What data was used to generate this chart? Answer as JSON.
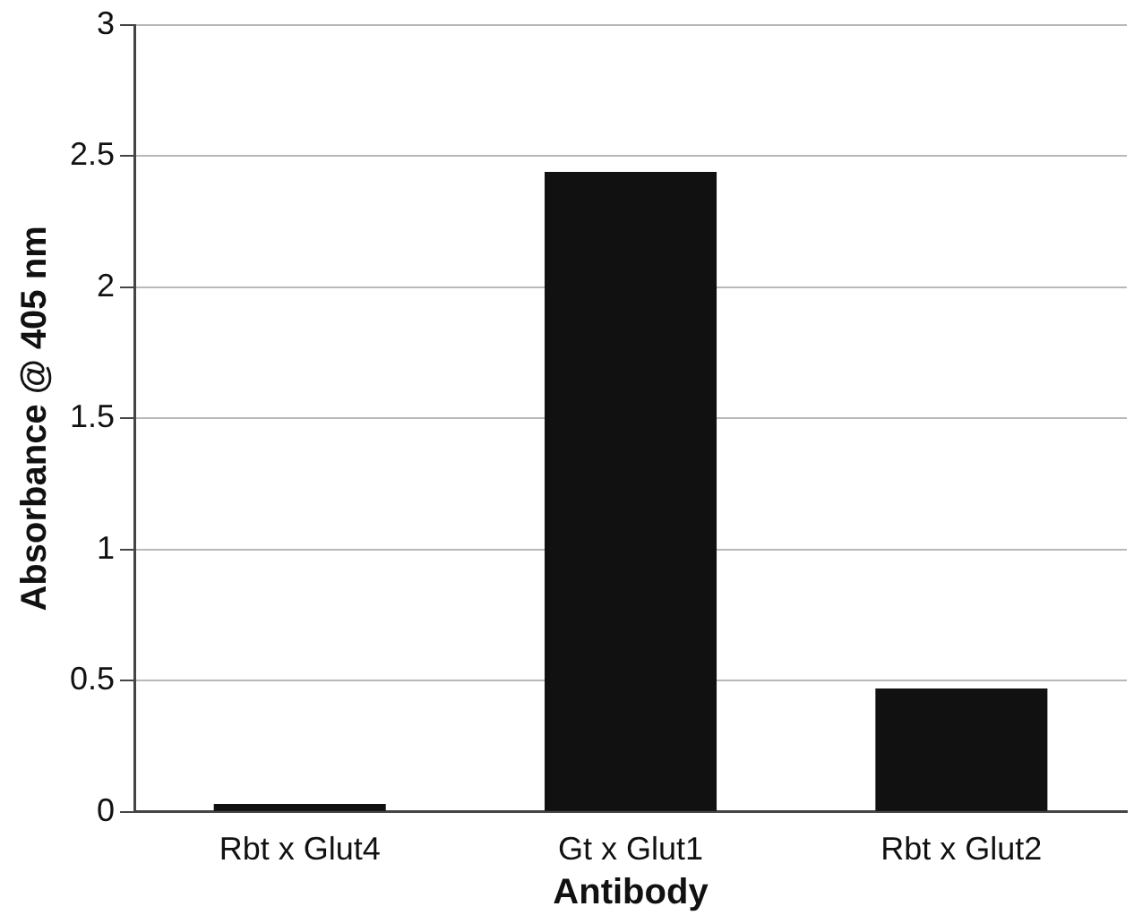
{
  "chart_data": {
    "type": "bar",
    "xlabel": "Antibody",
    "ylabel": "Absorbance @ 405 nm",
    "categories": [
      "Rbt x Glut4",
      "Gt x Glut1",
      "Rbt x Glut2"
    ],
    "values": [
      0.03,
      2.44,
      0.47
    ],
    "color": "#111111",
    "ylim": [
      0,
      3
    ],
    "yticks": [
      0,
      0.5,
      1,
      1.5,
      2,
      2.5,
      3
    ],
    "grid": "y",
    "legend": false
  }
}
